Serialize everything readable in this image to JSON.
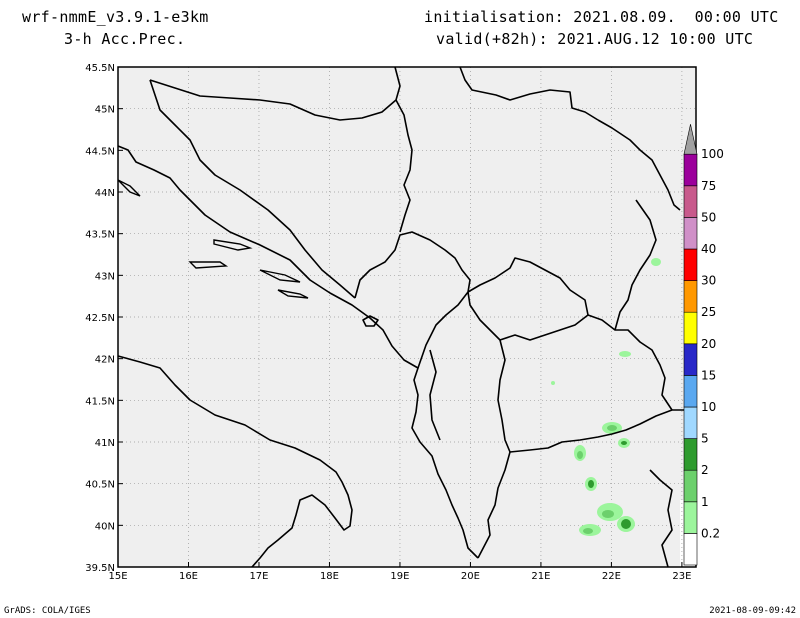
{
  "header": {
    "model": "wrf-nmmE_v3.9.1-e3km",
    "variable": "3-h Acc.Prec.",
    "init": "initialisation: 2021.08.09.  00:00 UTC",
    "valid": "valid(+82h): 2021.AUG.12 10:00 UTC"
  },
  "map": {
    "lat_labels": [
      "45.5N",
      "45N",
      "44.5N",
      "44N",
      "43.5N",
      "43N",
      "42.5N",
      "42N",
      "41.5N",
      "41N",
      "40.5N",
      "40N",
      "39.5N"
    ],
    "lon_labels": [
      "15E",
      "16E",
      "17E",
      "18E",
      "19E",
      "20E",
      "21E",
      "22E",
      "23E"
    ],
    "lat_range": [
      39.5,
      45.5
    ],
    "lon_range": [
      15.0,
      23.2
    ],
    "land_color": "#efefef",
    "grid": "dotted"
  },
  "colorbar": {
    "labels": [
      "0.2",
      "1",
      "2",
      "5",
      "10",
      "15",
      "20",
      "25",
      "30",
      "40",
      "50",
      "75",
      "100"
    ],
    "colors": [
      "#ffffff",
      "#9cf59c",
      "#6cd06c",
      "#2e9b2e",
      "#a0d8ff",
      "#5aa8f0",
      "#2828c8",
      "#ffff00",
      "#ff9800",
      "#ff0000",
      "#d090c8",
      "#c85a8c",
      "#9b009b",
      "#a0a0a0"
    ]
  },
  "footer": {
    "left": "GrADS: COLA/IGES",
    "right": "2021-08-09-09:42"
  }
}
